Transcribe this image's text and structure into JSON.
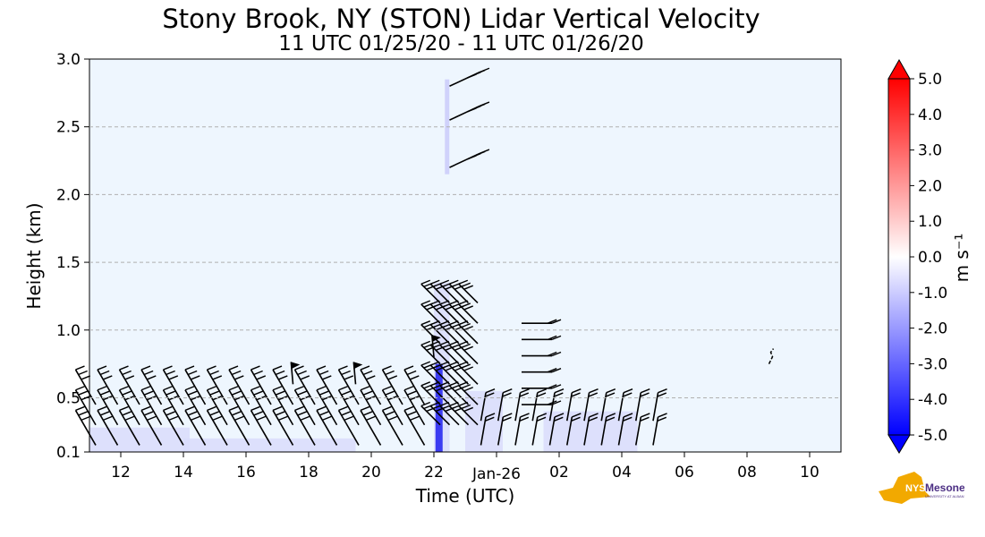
{
  "header": {
    "title": "Stony Brook, NY (STON) Lidar Vertical Velocity",
    "subtitle": "11 UTC 01/25/20 - 11 UTC 01/26/20"
  },
  "chart_data": {
    "type": "heatmap",
    "xlabel": "Time (UTC)",
    "ylabel": "Height (km)",
    "xlim_hours_since_11utc_jan25": null,
    "x_ticks": [
      "12",
      "14",
      "16",
      "18",
      "20",
      "22",
      "Jan-26",
      "02",
      "04",
      "06",
      "08",
      "10"
    ],
    "y_ticks": [
      "0.1",
      "0.5",
      "1.0",
      "1.5",
      "2.0",
      "2.5",
      "3.0"
    ],
    "ylim": [
      0.1,
      3.0
    ],
    "grid": "horizontal dashed",
    "colorbar": {
      "label": "m s⁻¹",
      "range": [
        -5.0,
        5.0
      ],
      "ticks": [
        "5.0",
        "4.0",
        "3.0",
        "2.0",
        "1.0",
        "0.0",
        "-1.0",
        "-2.0",
        "-3.0",
        "-4.0",
        "-5.0"
      ],
      "colors": {
        "max": "#ff0000",
        "zero": "#ffffff",
        "min": "#0000ff"
      }
    },
    "background_color": "#eef6fe",
    "notes_visible": [
      "wind barbs",
      "contours"
    ]
  },
  "logo": {
    "text": "NYS Mesonet",
    "subtext": "UNIVERSITY AT ALBANY"
  }
}
